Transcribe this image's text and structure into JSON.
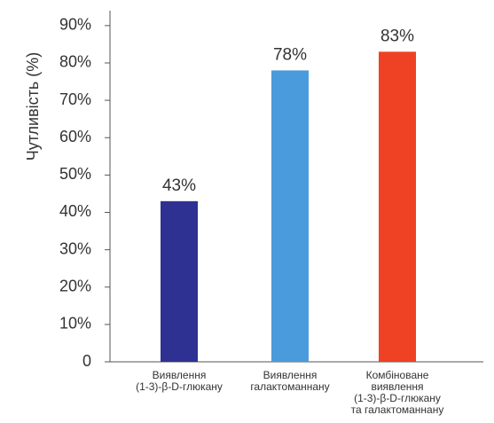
{
  "chart_data": {
    "type": "bar",
    "y_label": "Чутливість (%)",
    "categories": [
      "Виявлення\n(1-3)-β-D-глюкану",
      "Виявлення\nгалактоманнану",
      "Комбіноване\nвиявлення\n(1-3)-β-D-глюкану\nта галактоманнану"
    ],
    "values": [
      43,
      78,
      83
    ],
    "value_labels": [
      "43%",
      "78%",
      "83%"
    ],
    "colors": [
      "#2e3192",
      "#4a9bdc",
      "#ef4123"
    ],
    "ylim": [
      0,
      94
    ],
    "yticks": [
      0,
      {
        "value": 10,
        "label": "10%"
      },
      {
        "value": 20,
        "label": "20%"
      },
      {
        "value": 30,
        "label": "30%"
      },
      {
        "value": 40,
        "label": "40%"
      },
      {
        "value": 50,
        "label": "50%"
      },
      {
        "value": 60,
        "label": "60%"
      },
      {
        "value": 70,
        "label": "70%"
      },
      {
        "value": 80,
        "label": "80%"
      },
      {
        "value": 90,
        "label": "90%"
      }
    ],
    "grid": false
  }
}
